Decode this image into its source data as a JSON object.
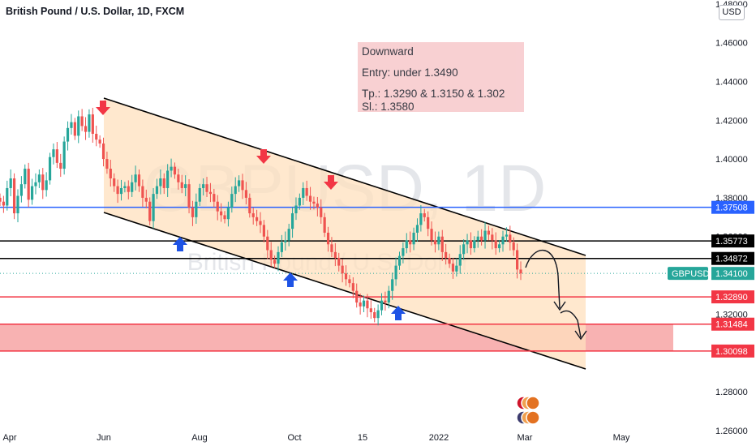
{
  "header": {
    "title": "British Pound / U.S. Dollar, 1D, FXCM",
    "currency_button": "USD"
  },
  "watermark": {
    "main": "GBPUSD, 1D",
    "sub": "British Pound / U.S. Dollar"
  },
  "note": {
    "line1": "Downward",
    "line2": "Entry: under 1.3490",
    "line3": "Tp.: 1.3290  & 1.3150 & 1.302",
    "line4": "Sl.: 1.3580"
  },
  "chart_data": {
    "type": "candlestick",
    "symbol": "GBPUSD",
    "ylim": [
      1.252,
      1.482
    ],
    "y_ticks": [
      "1.48000",
      "1.46000",
      "1.44000",
      "1.42000",
      "1.40000",
      "1.38000",
      "1.36000",
      "1.34000",
      "1.32000",
      "1.30000",
      "1.28000",
      "1.26000"
    ],
    "x_ticks": [
      "Apr",
      "Jun",
      "Aug",
      "Oct",
      "15",
      "2022",
      "Mar",
      "May"
    ],
    "close_series": [
      1.378,
      1.376,
      1.385,
      1.39,
      1.372,
      1.381,
      1.387,
      1.395,
      1.379,
      1.386,
      1.388,
      1.392,
      1.384,
      1.389,
      1.401,
      1.405,
      1.398,
      1.395,
      1.409,
      1.416,
      1.419,
      1.412,
      1.422,
      1.417,
      1.414,
      1.423,
      1.413,
      1.41,
      1.408,
      1.4,
      1.395,
      1.39,
      1.386,
      1.382,
      1.385,
      1.386,
      1.383,
      1.388,
      1.392,
      1.386,
      1.38,
      1.378,
      1.368,
      1.382,
      1.386,
      1.39,
      1.385,
      1.394,
      1.396,
      1.392,
      1.388,
      1.385,
      1.387,
      1.375,
      1.37,
      1.378,
      1.385,
      1.387,
      1.383,
      1.382,
      1.378,
      1.373,
      1.371,
      1.369,
      1.375,
      1.382,
      1.386,
      1.389,
      1.384,
      1.38,
      1.372,
      1.37,
      1.368,
      1.366,
      1.36,
      1.353,
      1.348,
      1.346,
      1.352,
      1.357,
      1.358,
      1.364,
      1.372,
      1.376,
      1.38,
      1.385,
      1.381,
      1.378,
      1.377,
      1.375,
      1.37,
      1.362,
      1.356,
      1.352,
      1.349,
      1.345,
      1.341,
      1.338,
      1.336,
      1.332,
      1.326,
      1.324,
      1.327,
      1.323,
      1.321,
      1.318,
      1.322,
      1.327,
      1.326,
      1.332,
      1.338,
      1.345,
      1.35,
      1.354,
      1.358,
      1.356,
      1.362,
      1.366,
      1.372,
      1.37,
      1.364,
      1.358,
      1.356,
      1.36,
      1.352,
      1.349,
      1.346,
      1.342,
      1.345,
      1.351,
      1.356,
      1.358,
      1.354,
      1.358,
      1.36,
      1.358,
      1.363,
      1.361,
      1.358,
      1.354,
      1.356,
      1.36,
      1.361,
      1.357,
      1.353,
      1.343,
      1.341
    ],
    "levels": [
      {
        "label": "1.37508",
        "value": 1.37508,
        "color": "#2962ff"
      },
      {
        "label": "1.35773",
        "value": 1.35773,
        "color": "#000000"
      },
      {
        "label": "1.34872",
        "value": 1.34872,
        "color": "#000000"
      },
      {
        "label": "GBPUSD",
        "value": 1.341,
        "price_label": "1.34100",
        "color": "#26a69a"
      },
      {
        "label": "1.32890",
        "value": 1.3289,
        "color": "#f23645"
      },
      {
        "label": "1.31484",
        "value": 1.31484,
        "color": "#f23645"
      },
      {
        "label": "1.30098",
        "value": 1.30098,
        "color": "#f23645"
      }
    ],
    "channel": {
      "upper": [
        [
          1.435,
          "Jun"
        ],
        [
          1.349,
          "Mar end"
        ]
      ],
      "lower": [
        [
          1.376,
          "Jun"
        ],
        [
          1.286,
          "Mar end"
        ]
      ]
    },
    "colors": {
      "up": "#26a69a",
      "down": "#ef5350",
      "channel_fill": "#ffe0bd",
      "zone": "#f7a4a4"
    }
  }
}
